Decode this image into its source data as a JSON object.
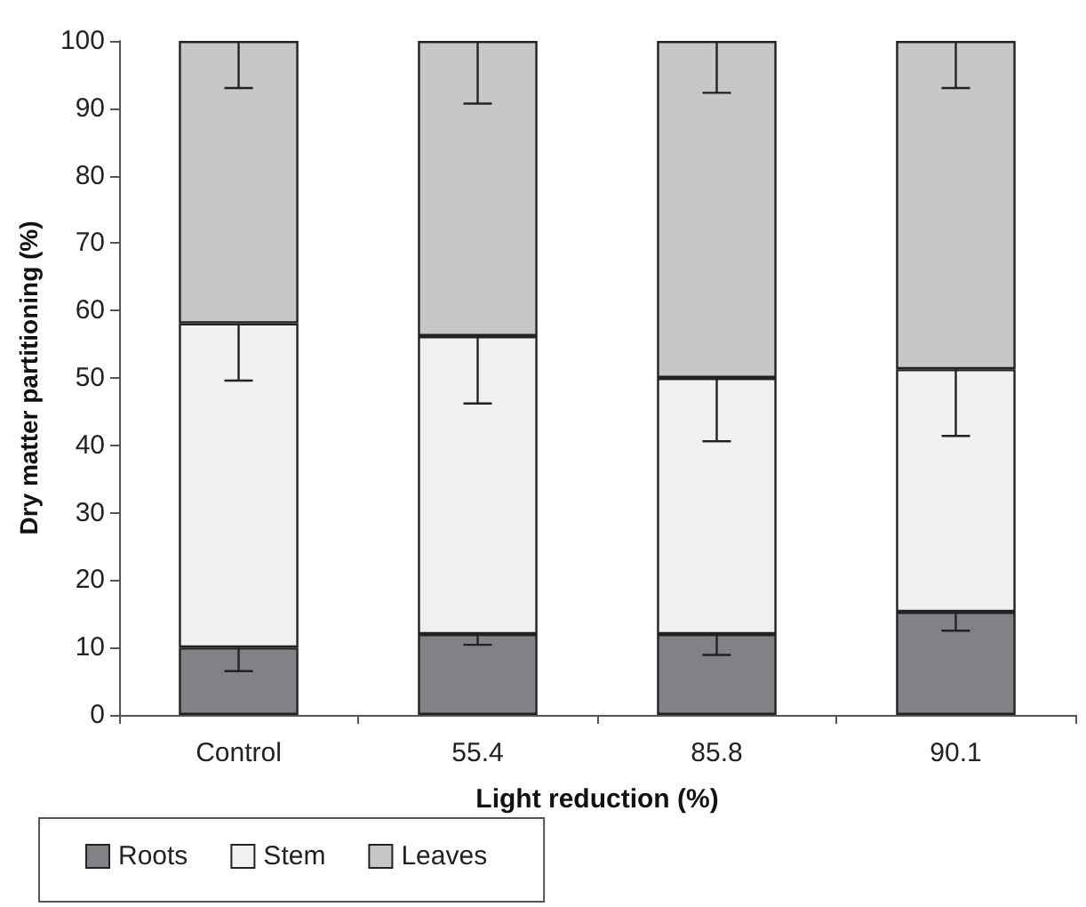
{
  "chart_data": {
    "type": "bar",
    "stacked": true,
    "xlabel": "Light reduction (%)",
    "ylabel": "Dry matter partitioning (%)",
    "categories": [
      "Control",
      "55.4",
      "85.8",
      "90.1"
    ],
    "series": [
      {
        "name": "Roots",
        "color": "#808285",
        "values": [
          10,
          12,
          12,
          15.3
        ],
        "errors": [
          [
            6.5,
            10
          ],
          [
            10.4,
            12
          ],
          [
            8.9,
            12
          ],
          [
            12.5,
            15.3
          ]
        ]
      },
      {
        "name": "Stem",
        "color": "#f0f1f3",
        "values": [
          48.1,
          44.2,
          38,
          36
        ],
        "errors": [
          [
            49.6,
            58.1
          ],
          [
            46.2,
            56.2
          ],
          [
            40.6,
            50
          ],
          [
            41.4,
            51.3
          ]
        ]
      },
      {
        "name": "Leaves",
        "color": "#c6c7c9",
        "values": [
          41.9,
          43.8,
          50,
          48.7
        ],
        "errors": [
          [
            93,
            100
          ],
          [
            90.7,
            100
          ],
          [
            92.3,
            100
          ],
          [
            93,
            100
          ]
        ]
      }
    ],
    "ylim": [
      0,
      100
    ],
    "yticks": [
      0,
      10,
      20,
      30,
      40,
      50,
      60,
      70,
      80,
      90,
      100
    ],
    "grid": false,
    "legend": "bottom left"
  }
}
